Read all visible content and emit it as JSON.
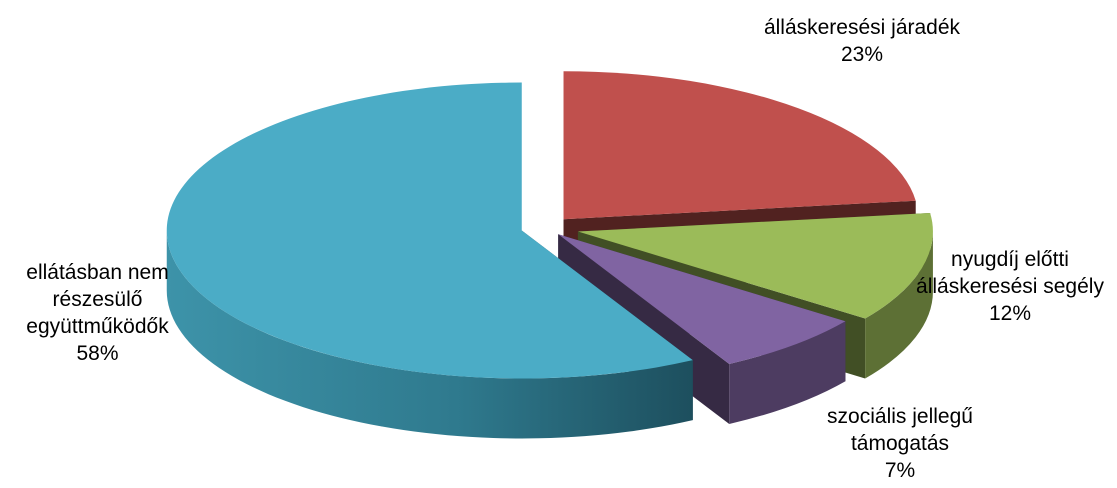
{
  "chart_data": {
    "type": "pie",
    "style": "3d-exploded",
    "legend": "none",
    "slices": [
      {
        "label_lines": [
          "álláskeresési járadék"
        ],
        "value": 23,
        "value_label": "23%",
        "color": "#c0504d"
      },
      {
        "label_lines": [
          "nyugdíj előtti",
          "álláskeresési segély"
        ],
        "value": 12,
        "value_label": "12%",
        "color": "#9bbb59"
      },
      {
        "label_lines": [
          "szociális jellegű",
          "támogatás"
        ],
        "value": 7,
        "value_label": "7%",
        "color": "#8064a2"
      },
      {
        "label_lines": [
          "ellátásban nem",
          "részesülő",
          "együttműködők"
        ],
        "value": 58,
        "value_label": "58%",
        "color": "#4bacc6"
      }
    ]
  }
}
